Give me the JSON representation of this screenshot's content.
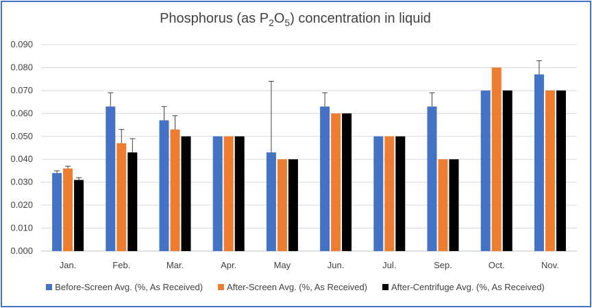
{
  "chart_data": {
    "type": "bar",
    "title_prefix": "Phosphorus (as P",
    "title_sub1": "2",
    "title_mid": "O",
    "title_sub2": "5",
    "title_suffix": ") concentration in liquid",
    "categories": [
      "Jan.",
      "Feb.",
      "Mar.",
      "Apr.",
      "May",
      "Jun.",
      "Jul.",
      "Sep.",
      "Oct.",
      "Nov."
    ],
    "ylim": [
      0,
      0.09
    ],
    "yticks": [
      "0.000",
      "0.010",
      "0.020",
      "0.030",
      "0.040",
      "0.050",
      "0.060",
      "0.070",
      "0.080",
      "0.090"
    ],
    "grid": true,
    "legend_position": "bottom",
    "series": [
      {
        "name": "Before-Screen Avg. (%, As Received)",
        "color": "#4472C4",
        "values": [
          0.034,
          0.063,
          0.057,
          0.05,
          0.043,
          0.063,
          0.05,
          0.063,
          0.07,
          0.077
        ],
        "error_upper": [
          0.035,
          0.069,
          0.063,
          0.05,
          0.074,
          0.069,
          0.05,
          0.069,
          0.07,
          0.083
        ]
      },
      {
        "name": "After-Screen Avg. (%, As Received)",
        "color": "#ED7D31",
        "values": [
          0.036,
          0.047,
          0.053,
          0.05,
          0.04,
          0.06,
          0.05,
          0.04,
          0.08,
          0.07
        ],
        "error_upper": [
          0.037,
          0.053,
          0.059,
          0.05,
          0.04,
          0.06,
          0.05,
          0.04,
          0.08,
          0.07
        ]
      },
      {
        "name": "After-Centrifuge Avg. (%, As Received)",
        "color": "#000000",
        "values": [
          0.031,
          0.043,
          0.05,
          0.05,
          0.04,
          0.06,
          0.05,
          0.04,
          0.07,
          0.07
        ],
        "error_upper": [
          0.032,
          0.049,
          0.05,
          0.05,
          0.04,
          0.06,
          0.05,
          0.04,
          0.07,
          0.07
        ]
      }
    ]
  }
}
